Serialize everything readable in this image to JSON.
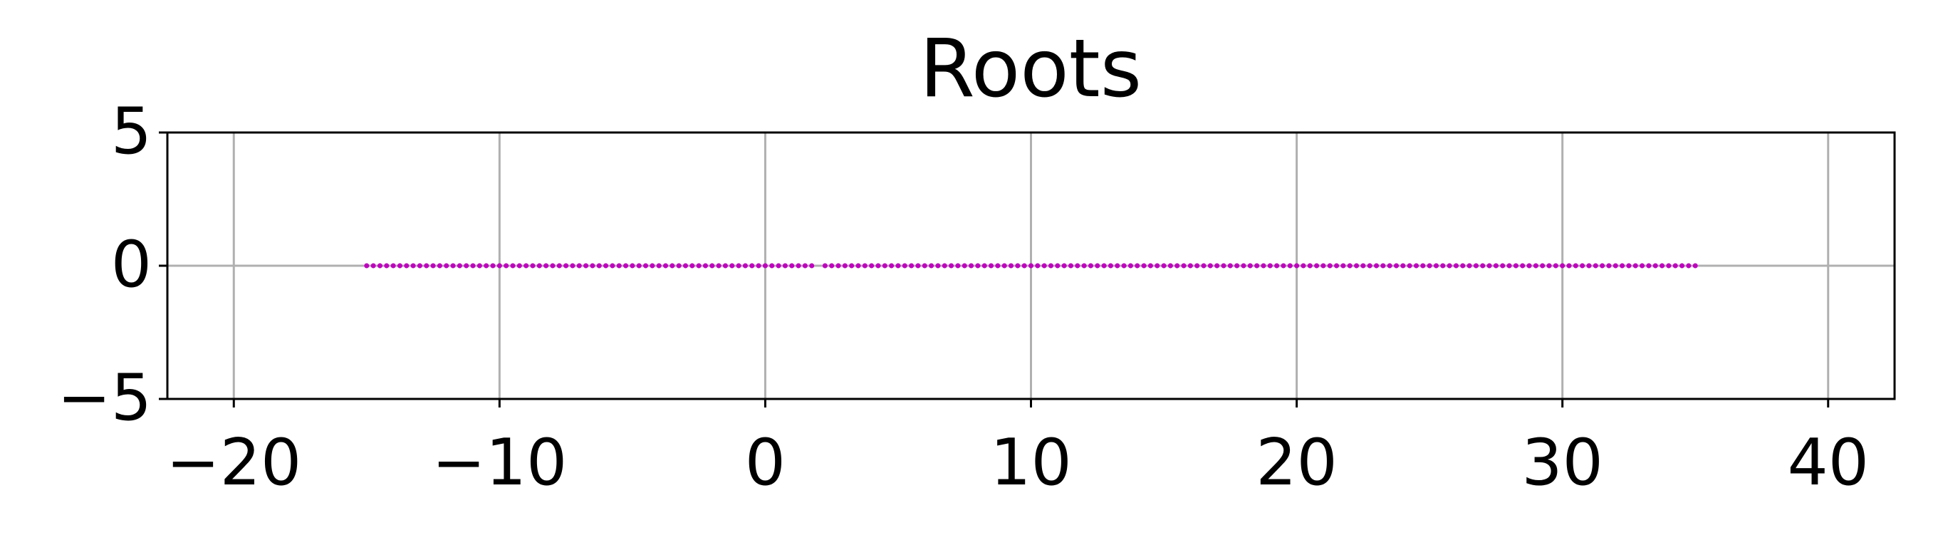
{
  "chart_data": {
    "type": "scatter",
    "title": "Roots",
    "x": [
      -15,
      -14.75,
      -14.5,
      -14.25,
      -14,
      -13.75,
      -13.5,
      -13.25,
      -13,
      -12.75,
      -12.5,
      -12.25,
      -12,
      -11.75,
      -11.5,
      -11.25,
      -11,
      -10.75,
      -10.5,
      -10.25,
      -10,
      -9.75,
      -9.5,
      -9.25,
      -9,
      -8.75,
      -8.5,
      -8.25,
      -8,
      -7.75,
      -7.5,
      -7.25,
      -7,
      -6.75,
      -6.5,
      -6.25,
      -6,
      -5.75,
      -5.5,
      -5.25,
      -5,
      -4.75,
      -4.5,
      -4.25,
      -4,
      -3.75,
      -3.5,
      -3.25,
      -3,
      -2.75,
      -2.5,
      -2.25,
      -2,
      -1.75,
      -1.5,
      -1.25,
      -1,
      -0.75,
      -0.5,
      -0.25,
      0,
      0.25,
      0.5,
      0.75,
      1,
      1.25,
      1.5,
      1.75,
      2.25,
      2.5,
      2.75,
      3,
      3.25,
      3.5,
      3.75,
      4,
      4.25,
      4.5,
      4.75,
      5,
      5.25,
      5.5,
      5.75,
      6,
      6.25,
      6.5,
      6.75,
      7,
      7.25,
      7.5,
      7.75,
      8,
      8.25,
      8.5,
      8.75,
      9,
      9.25,
      9.5,
      9.75,
      10,
      10.25,
      10.5,
      10.75,
      11,
      11.25,
      11.5,
      11.75,
      12,
      12.25,
      12.5,
      12.75,
      13,
      13.25,
      13.5,
      13.75,
      14,
      14.25,
      14.5,
      14.75,
      15,
      15.25,
      15.5,
      15.75,
      16,
      16.25,
      16.5,
      16.75,
      17,
      17.25,
      17.5,
      17.75,
      18,
      18.25,
      18.5,
      18.75,
      19,
      19.25,
      19.5,
      19.75,
      20,
      20.25,
      20.5,
      20.75,
      21,
      21.25,
      21.5,
      21.75,
      22,
      22.25,
      22.5,
      22.75,
      23,
      23.25,
      23.5,
      23.75,
      24,
      24.25,
      24.5,
      24.75,
      25,
      25.25,
      25.5,
      25.75,
      26,
      26.25,
      26.5,
      26.75,
      27,
      27.25,
      27.5,
      27.75,
      28,
      28.25,
      28.5,
      28.75,
      29,
      29.25,
      29.5,
      29.75,
      30,
      30.25,
      30.5,
      30.75,
      31,
      31.25,
      31.5,
      31.75,
      32,
      32.25,
      32.5,
      32.75,
      33,
      33.25,
      33.5,
      33.75,
      34,
      34.25,
      34.5,
      34.75,
      35
    ],
    "values": [
      0,
      0,
      0,
      0,
      0,
      0,
      0,
      0,
      0,
      0,
      0,
      0,
      0,
      0,
      0,
      0,
      0,
      0,
      0,
      0,
      0,
      0,
      0,
      0,
      0,
      0,
      0,
      0,
      0,
      0,
      0,
      0,
      0,
      0,
      0,
      0,
      0,
      0,
      0,
      0,
      0,
      0,
      0,
      0,
      0,
      0,
      0,
      0,
      0,
      0,
      0,
      0,
      0,
      0,
      0,
      0,
      0,
      0,
      0,
      0,
      0,
      0,
      0,
      0,
      0,
      0,
      0,
      0,
      0,
      0,
      0,
      0,
      0,
      0,
      0,
      0,
      0,
      0,
      0,
      0,
      0,
      0,
      0,
      0,
      0,
      0,
      0,
      0,
      0,
      0,
      0,
      0,
      0,
      0,
      0,
      0,
      0,
      0,
      0,
      0,
      0,
      0,
      0,
      0,
      0,
      0,
      0,
      0,
      0,
      0,
      0,
      0,
      0,
      0,
      0,
      0,
      0,
      0,
      0,
      0,
      0,
      0,
      0,
      0,
      0,
      0,
      0,
      0,
      0,
      0,
      0,
      0,
      0,
      0,
      0,
      0,
      0,
      0,
      0,
      0,
      0,
      0,
      0,
      0,
      0,
      0,
      0,
      0,
      0,
      0,
      0,
      0,
      0,
      0,
      0,
      0,
      0,
      0,
      0,
      0,
      0,
      0,
      0,
      0,
      0,
      0,
      0,
      0,
      0,
      0,
      0,
      0,
      0,
      0,
      0,
      0,
      0,
      0,
      0,
      0,
      0,
      0,
      0,
      0,
      0,
      0,
      0,
      0,
      0,
      0,
      0,
      0,
      0,
      0,
      0,
      0,
      0,
      0,
      0,
      0
    ],
    "color": "#bf00bf",
    "xlim": [
      -22.5,
      42.5
    ],
    "xticks": [
      {
        "value": -20,
        "label": "−20"
      },
      {
        "value": -10,
        "label": "−10"
      },
      0,
      10,
      20,
      30,
      40
    ],
    "ylim": [
      -5,
      5
    ],
    "yticks": [
      {
        "value": -5,
        "label": "−5"
      },
      0,
      5
    ],
    "grid": true
  }
}
